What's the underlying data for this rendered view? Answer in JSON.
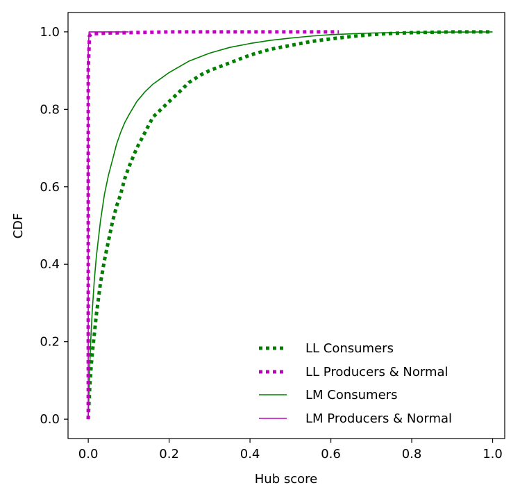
{
  "chart_data": {
    "type": "line",
    "title": "",
    "xlabel": "Hub score",
    "ylabel": "CDF",
    "xlim": [
      -0.05,
      1.03
    ],
    "ylim": [
      -0.05,
      1.05
    ],
    "xticks": [
      0.0,
      0.2,
      0.4,
      0.6,
      0.8,
      1.0
    ],
    "xtick_labels": [
      "0.0",
      "0.2",
      "0.4",
      "0.6",
      "0.8",
      "1.0"
    ],
    "yticks": [
      0.0,
      0.2,
      0.4,
      0.6,
      0.8,
      1.0
    ],
    "ytick_labels": [
      "0.0",
      "0.2",
      "0.4",
      "0.6",
      "0.8",
      "1.0"
    ],
    "grid": false,
    "legend_position": "bottom-right",
    "series": [
      {
        "name": "LL Consumers",
        "color": "#008000",
        "style": "dotted-thick",
        "x": [
          0.0,
          0.003,
          0.006,
          0.01,
          0.015,
          0.02,
          0.03,
          0.04,
          0.05,
          0.06,
          0.07,
          0.08,
          0.09,
          0.1,
          0.12,
          0.14,
          0.16,
          0.18,
          0.2,
          0.22,
          0.25,
          0.28,
          0.3,
          0.35,
          0.4,
          0.45,
          0.5,
          0.55,
          0.6,
          0.65,
          0.7,
          0.75,
          0.8,
          0.9,
          1.0
        ],
        "y": [
          0.0,
          0.07,
          0.12,
          0.17,
          0.22,
          0.27,
          0.35,
          0.41,
          0.46,
          0.51,
          0.55,
          0.58,
          0.62,
          0.65,
          0.7,
          0.74,
          0.78,
          0.8,
          0.82,
          0.84,
          0.87,
          0.89,
          0.9,
          0.92,
          0.94,
          0.955,
          0.965,
          0.975,
          0.982,
          0.988,
          0.993,
          0.996,
          0.998,
          1.0,
          1.0
        ]
      },
      {
        "name": "LL Producers & Normal",
        "color": "#bf00bf",
        "style": "dotted-thick",
        "x": [
          0.0,
          0.0,
          0.003,
          0.01,
          0.05,
          0.1,
          0.2,
          0.4,
          0.62
        ],
        "y": [
          0.0,
          0.9,
          0.99,
          0.995,
          0.997,
          0.998,
          1.0,
          1.0,
          1.0
        ]
      },
      {
        "name": "LM Consumers",
        "color": "#008000",
        "style": "solid",
        "x": [
          0.0,
          0.003,
          0.006,
          0.01,
          0.015,
          0.02,
          0.03,
          0.04,
          0.05,
          0.06,
          0.07,
          0.08,
          0.09,
          0.1,
          0.12,
          0.14,
          0.16,
          0.18,
          0.2,
          0.25,
          0.3,
          0.35,
          0.4,
          0.45,
          0.5,
          0.55,
          0.6,
          0.7,
          0.8,
          1.0
        ],
        "y": [
          0.0,
          0.12,
          0.2,
          0.28,
          0.36,
          0.42,
          0.51,
          0.58,
          0.63,
          0.67,
          0.71,
          0.74,
          0.765,
          0.785,
          0.82,
          0.845,
          0.865,
          0.88,
          0.895,
          0.925,
          0.945,
          0.96,
          0.97,
          0.978,
          0.984,
          0.989,
          0.993,
          0.997,
          0.999,
          1.0
        ]
      },
      {
        "name": "LM Producers & Normal",
        "color": "#bf00bf",
        "style": "solid",
        "x": [
          0.0,
          0.0,
          0.002,
          0.005,
          0.05,
          0.1
        ],
        "y": [
          0.0,
          0.95,
          1.0,
          1.0,
          1.0,
          1.0
        ]
      }
    ]
  }
}
